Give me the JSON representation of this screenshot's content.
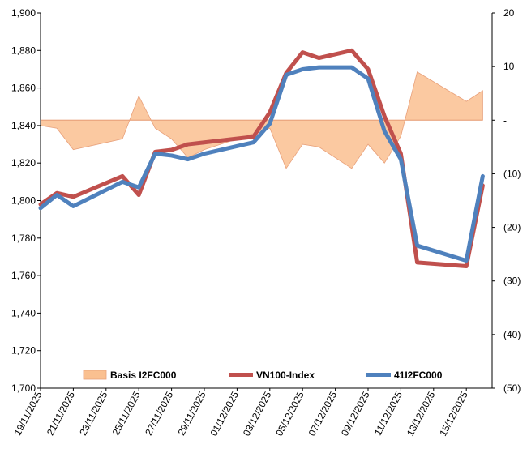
{
  "chart_data": {
    "type": "line",
    "title": "",
    "xlabel": "",
    "ylabel": "",
    "ylim": [
      1700,
      1900
    ],
    "y_ticks": [
      "1,700",
      "1,720",
      "1,740",
      "1,760",
      "1,780",
      "1,800",
      "1,820",
      "1,840",
      "1,860",
      "1,880",
      "1,900"
    ],
    "y2lim": [
      -50,
      20
    ],
    "y2_ticks": [
      "(50)",
      "(40)",
      "(30)",
      "(20)",
      "(10)",
      "-",
      "10",
      "20"
    ],
    "x_tick_labels": [
      "19/11/2025",
      "21/11/2025",
      "23/11/2025",
      "25/11/2025",
      "27/11/2025",
      "29/11/2025",
      "01/12/2025",
      "03/12/2025",
      "05/12/2025",
      "07/12/2025",
      "09/12/2025",
      "11/12/2025",
      "13/12/2025",
      "15/12/2025"
    ],
    "x_tick_days": [
      0,
      2,
      4,
      6,
      8,
      10,
      12,
      14,
      16,
      18,
      20,
      22,
      24,
      26
    ],
    "legend": [
      "Basis I2FC000",
      "VN100-Index",
      "41I2FC000"
    ],
    "series": [
      {
        "name": "VN100-Index",
        "axis": "left",
        "color": "#C0504D",
        "days": [
          0,
          1,
          2,
          5,
          6,
          7,
          8,
          9,
          10,
          13,
          14,
          15,
          16,
          17,
          19,
          20,
          21,
          22,
          23,
          26,
          27
        ],
        "values": [
          1798,
          1804,
          1802,
          1813,
          1803,
          1826,
          1827,
          1830,
          1831,
          1834,
          1847,
          1868,
          1879,
          1876,
          1880,
          1870,
          1845,
          1825,
          1767,
          1765,
          1808
        ]
      },
      {
        "name": "41I2FC000",
        "axis": "left",
        "color": "#4F81BD",
        "days": [
          0,
          1,
          2,
          5,
          6,
          7,
          8,
          9,
          10,
          13,
          14,
          15,
          16,
          17,
          19,
          20,
          21,
          22,
          23,
          26,
          27
        ],
        "values": [
          1796,
          1803,
          1797,
          1810,
          1807,
          1825,
          1824,
          1822,
          1825,
          1831,
          1841,
          1867,
          1870,
          1871,
          1871,
          1865,
          1837,
          1822,
          1776,
          1768,
          1813
        ]
      },
      {
        "name": "Basis I2FC000",
        "axis": "right",
        "type": "area",
        "color": "#FAC090",
        "days": [
          0,
          1,
          2,
          5,
          6,
          7,
          8,
          9,
          10,
          13,
          14,
          15,
          16,
          17,
          19,
          20,
          21,
          22,
          23,
          26,
          27
        ],
        "values": [
          -1,
          -1.5,
          -5.5,
          -3.5,
          4.5,
          -1.5,
          -3.5,
          -7,
          -5.5,
          -2.5,
          -1.5,
          -9,
          -4.5,
          -5,
          -9,
          -4.5,
          -8,
          -3,
          9,
          3.5,
          5.5
        ]
      }
    ]
  }
}
